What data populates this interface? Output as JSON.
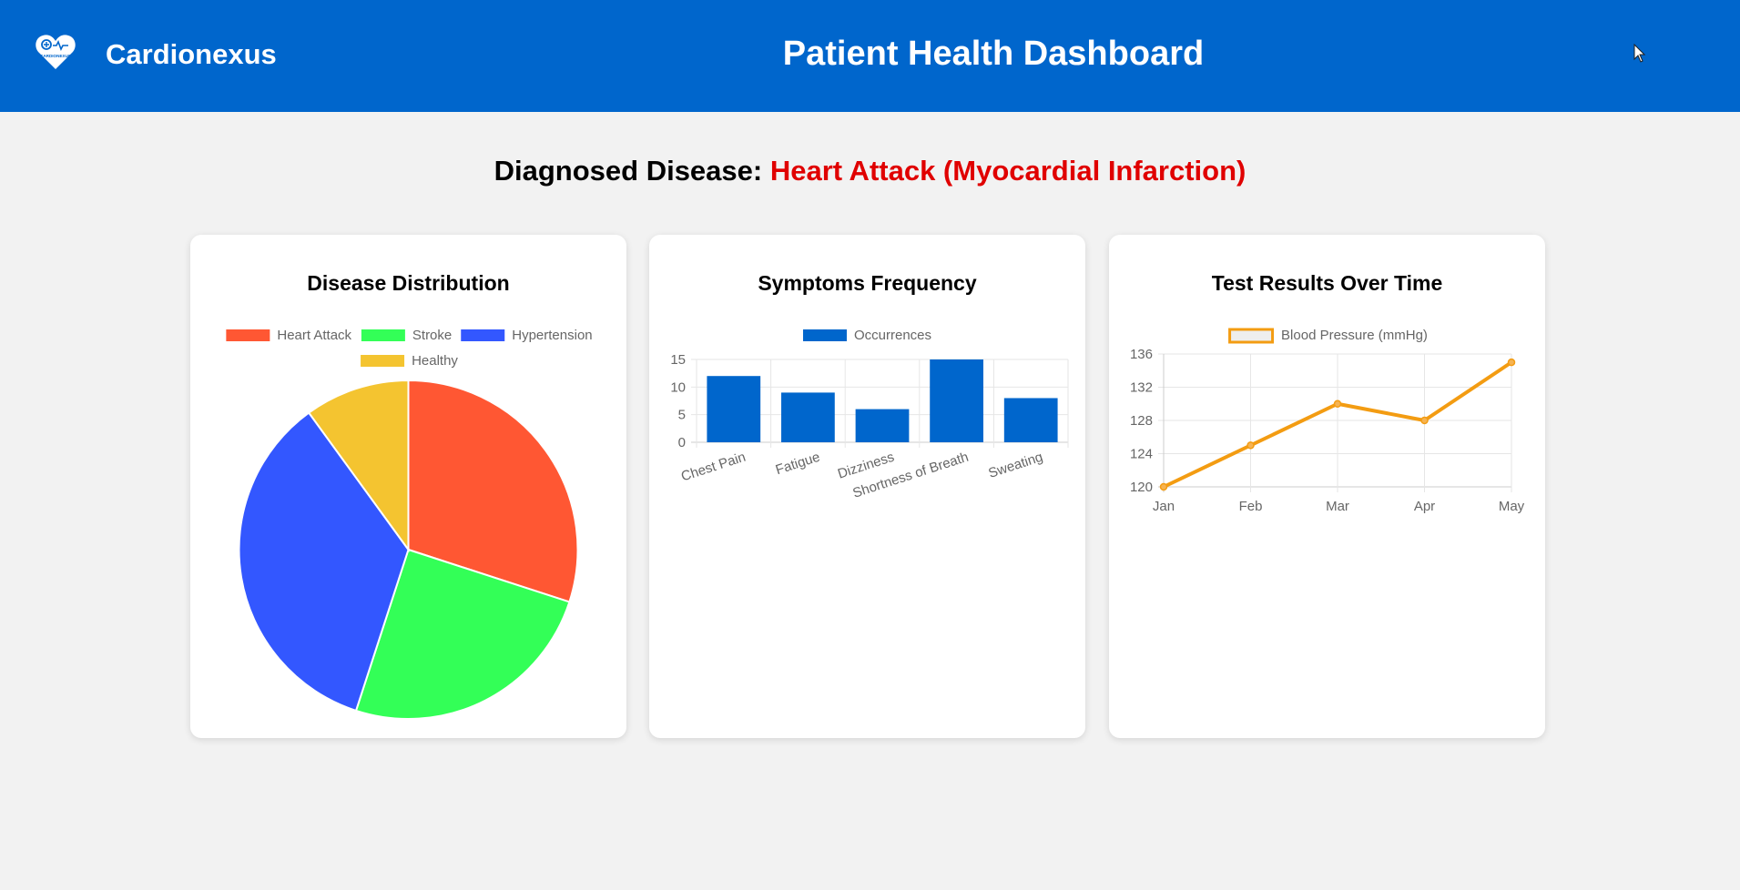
{
  "header": {
    "brand": "Cardionexus",
    "logo_text": "CARDIONEXUS",
    "title": "Patient Health Dashboard"
  },
  "diagnosis": {
    "label": "Diagnosed Disease:",
    "value": "Heart Attack (Myocardial Infarction)"
  },
  "colors": {
    "header_bg": "#0066cc",
    "disease_text": "#e00000",
    "heart_attack": "#ff5733",
    "stroke": "#33ff57",
    "hypertension": "#3357ff",
    "healthy": "#f4c430",
    "bar": "#0066cc",
    "line": "#f39c12"
  },
  "cards": [
    {
      "title": "Disease Distribution"
    },
    {
      "title": "Symptoms Frequency"
    },
    {
      "title": "Test Results Over Time"
    }
  ],
  "chart_data": [
    {
      "type": "pie",
      "title": "Disease Distribution",
      "categories": [
        "Heart Attack",
        "Stroke",
        "Hypertension",
        "Healthy"
      ],
      "values": [
        30,
        25,
        35,
        10
      ],
      "legend": "top"
    },
    {
      "type": "bar",
      "title": "Symptoms Frequency",
      "categories": [
        "Chest Pain",
        "Fatigue",
        "Dizziness",
        "Shortness of Breath",
        "Sweating"
      ],
      "series": [
        {
          "name": "Occurrences",
          "values": [
            12,
            9,
            6,
            15,
            8
          ]
        }
      ],
      "ylim": [
        0,
        15
      ],
      "yticks": [
        0,
        5,
        10,
        15
      ],
      "grid": true,
      "legend": "top"
    },
    {
      "type": "line",
      "title": "Test Results Over Time",
      "categories": [
        "Jan",
        "Feb",
        "Mar",
        "Apr",
        "May"
      ],
      "series": [
        {
          "name": "Blood Pressure (mmHg)",
          "values": [
            120,
            125,
            130,
            128,
            135
          ]
        }
      ],
      "ylim": [
        120,
        136
      ],
      "yticks": [
        120,
        124,
        128,
        132,
        136
      ],
      "grid": true,
      "legend": "top"
    }
  ]
}
